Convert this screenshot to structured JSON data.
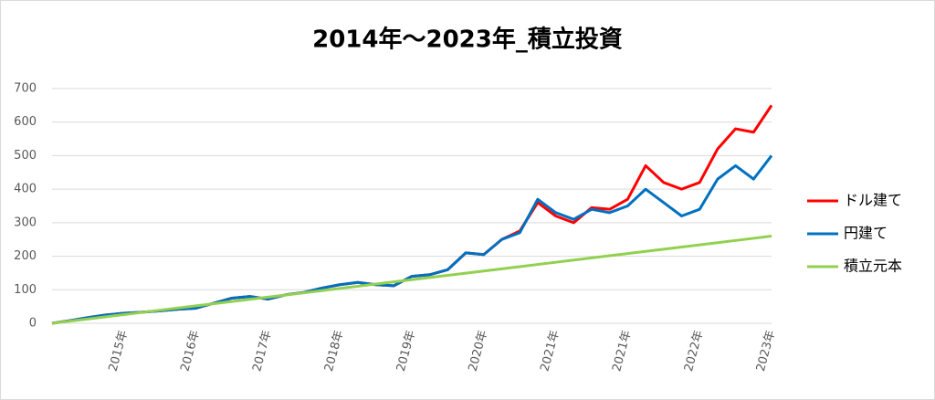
{
  "chart_data": {
    "type": "line",
    "title": "2014年～2023年_積立投資",
    "categories": [
      null,
      null,
      null,
      null,
      "2015年",
      null,
      null,
      null,
      "2016年",
      null,
      null,
      null,
      "2017年",
      null,
      null,
      null,
      "2018年",
      null,
      null,
      null,
      "2019年",
      null,
      null,
      null,
      "2020年",
      null,
      null,
      null,
      "2021年",
      null,
      null,
      null,
      "2021年",
      null,
      null,
      null,
      "2022年",
      null,
      null,
      null,
      "2023年"
    ],
    "series": [
      {
        "name": "ドル建て",
        "color": "#ff0000",
        "values": [
          0,
          8,
          17,
          25,
          30,
          33,
          37,
          42,
          45,
          60,
          75,
          80,
          72,
          85,
          92,
          105,
          115,
          122,
          115,
          112,
          140,
          145,
          160,
          210,
          205,
          250,
          275,
          360,
          320,
          300,
          345,
          340,
          370,
          470,
          420,
          400,
          420,
          520,
          580,
          570,
          650
        ]
      },
      {
        "name": "円建て",
        "color": "#0070c0",
        "values": [
          0,
          8,
          17,
          25,
          30,
          33,
          37,
          42,
          45,
          60,
          75,
          80,
          72,
          85,
          92,
          105,
          115,
          122,
          115,
          112,
          140,
          145,
          160,
          210,
          205,
          250,
          270,
          370,
          330,
          310,
          340,
          330,
          350,
          400,
          360,
          320,
          340,
          430,
          470,
          430,
          500
        ]
      },
      {
        "name": "積立元本",
        "color": "#92d050",
        "values": [
          0,
          6.5,
          13,
          19.5,
          26,
          32.5,
          39,
          45.5,
          52,
          58.5,
          65,
          71.5,
          78,
          84.5,
          91,
          97.5,
          104,
          110.5,
          117,
          123.5,
          130,
          136.5,
          143,
          149.5,
          156,
          162.5,
          169,
          175.5,
          182,
          188.5,
          195,
          201.5,
          208,
          214.5,
          221,
          227.5,
          234,
          240.5,
          247,
          253.5,
          260
        ]
      }
    ],
    "ylim": [
      0,
      700
    ],
    "yticks": [
      0,
      100,
      200,
      300,
      400,
      500,
      600,
      700
    ],
    "grid": true,
    "legend": "right"
  }
}
